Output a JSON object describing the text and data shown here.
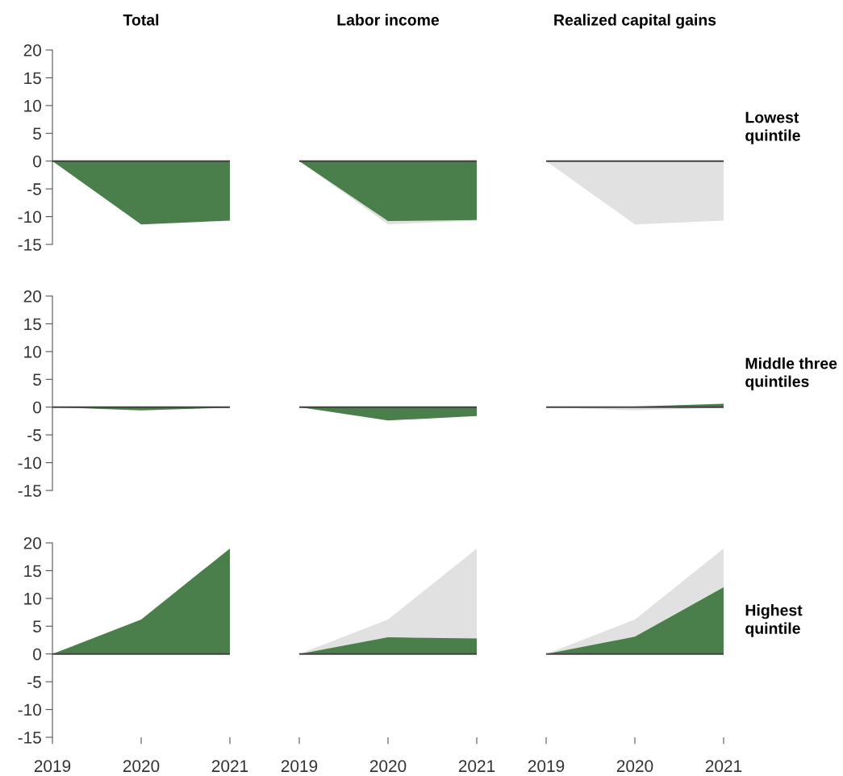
{
  "chart_data": [
    {
      "type": "area",
      "title": "Total",
      "x": [
        2019,
        2020,
        2021
      ],
      "xlim": [
        2019,
        2021
      ],
      "xticks": [
        2019,
        2020,
        2021
      ],
      "ylim": [
        -15,
        20
      ],
      "yticks": [
        -15,
        -10,
        -5,
        0,
        5,
        10,
        15,
        20
      ],
      "tick_labels": "y",
      "grid": false,
      "ref_lines": [
        {
          "axis": "y",
          "value": 0,
          "color": "#404040"
        }
      ],
      "series": [
        {
          "color": "#4a7e4a",
          "values": [
            0,
            -11.4,
            -10.7
          ]
        }
      ]
    },
    {
      "type": "area",
      "title": "Labor income",
      "x": [
        2019,
        2020,
        2021
      ],
      "xlim": [
        2019,
        2021
      ],
      "xticks": [
        2019,
        2020,
        2021
      ],
      "ylim": [
        -15,
        20
      ],
      "yticks": [
        -15,
        -10,
        -5,
        0,
        5,
        10,
        15,
        20
      ],
      "tick_labels": false,
      "grid": false,
      "ref_lines": [
        {
          "axis": "y",
          "value": 0,
          "color": "#404040"
        }
      ],
      "series": [
        {
          "color": "#e1e1e1",
          "values": [
            0,
            -11.4,
            -10.7
          ]
        },
        {
          "color": "#4a7e4a",
          "values": [
            0,
            -10.8,
            -10.6
          ]
        }
      ]
    },
    {
      "type": "area",
      "title": "Realized capital gains",
      "x": [
        2019,
        2020,
        2021
      ],
      "xlim": [
        2019,
        2021
      ],
      "xticks": [
        2019,
        2020,
        2021
      ],
      "ylim": [
        -15,
        20
      ],
      "yticks": [
        -15,
        -10,
        -5,
        0,
        5,
        10,
        15,
        20
      ],
      "tick_labels": false,
      "grid": false,
      "ref_lines": [
        {
          "axis": "y",
          "value": 0,
          "color": "#404040"
        }
      ],
      "annotations": [
        "Lowest\nquintile"
      ],
      "series": [
        {
          "color": "#e1e1e1",
          "values": [
            0,
            -11.4,
            -10.7
          ]
        }
      ]
    },
    {
      "type": "area",
      "x": [
        2019,
        2020,
        2021
      ],
      "xlim": [
        2019,
        2021
      ],
      "xticks": [
        2019,
        2020,
        2021
      ],
      "ylim": [
        -15,
        20
      ],
      "yticks": [
        -15,
        -10,
        -5,
        0,
        5,
        10,
        15,
        20
      ],
      "tick_labels": "y",
      "grid": false,
      "ref_lines": [
        {
          "axis": "y",
          "value": 0,
          "color": "#404040"
        }
      ],
      "series": [
        {
          "color": "#4a7e4a",
          "values": [
            0,
            -0.6,
            -0.1
          ]
        }
      ]
    },
    {
      "type": "area",
      "x": [
        2019,
        2020,
        2021
      ],
      "xlim": [
        2019,
        2021
      ],
      "xticks": [
        2019,
        2020,
        2021
      ],
      "ylim": [
        -15,
        20
      ],
      "yticks": [
        -15,
        -10,
        -5,
        0,
        5,
        10,
        15,
        20
      ],
      "tick_labels": false,
      "grid": false,
      "ref_lines": [
        {
          "axis": "y",
          "value": 0,
          "color": "#404040"
        }
      ],
      "series": [
        {
          "color": "#4a7e4a",
          "values": [
            0,
            -2.4,
            -1.6
          ]
        }
      ]
    },
    {
      "type": "area",
      "x": [
        2019,
        2020,
        2021
      ],
      "xlim": [
        2019,
        2021
      ],
      "xticks": [
        2019,
        2020,
        2021
      ],
      "ylim": [
        -15,
        20
      ],
      "yticks": [
        -15,
        -10,
        -5,
        0,
        5,
        10,
        15,
        20
      ],
      "tick_labels": false,
      "grid": false,
      "ref_lines": [
        {
          "axis": "y",
          "value": 0,
          "color": "#404040"
        }
      ],
      "annotations": [
        "Middle three\nquintiles"
      ],
      "series": [
        {
          "color": "#e1e1e1",
          "values": [
            0,
            -0.6,
            -0.1
          ]
        },
        {
          "color": "#4a7e4a",
          "values": [
            0,
            0.1,
            0.6
          ]
        }
      ]
    },
    {
      "type": "area",
      "x": [
        2019,
        2020,
        2021
      ],
      "xlim": [
        2019,
        2021
      ],
      "xticks": [
        2019,
        2020,
        2021
      ],
      "ylim": [
        -15,
        20
      ],
      "yticks": [
        -15,
        -10,
        -5,
        0,
        5,
        10,
        15,
        20
      ],
      "grid": false,
      "ref_lines": [
        {
          "axis": "y",
          "value": 0,
          "color": "#404040"
        }
      ],
      "series": [
        {
          "color": "#4a7e4a",
          "values": [
            0,
            6.2,
            19.0
          ]
        }
      ]
    },
    {
      "type": "area",
      "x": [
        2019,
        2020,
        2021
      ],
      "xlim": [
        2019,
        2021
      ],
      "xticks": [
        2019,
        2020,
        2021
      ],
      "ylim": [
        -15,
        20
      ],
      "yticks": [
        -15,
        -10,
        -5,
        0,
        5,
        10,
        15,
        20
      ],
      "tick_labels": "x",
      "grid": false,
      "ref_lines": [
        {
          "axis": "y",
          "value": 0,
          "color": "#404040"
        }
      ],
      "series": [
        {
          "color": "#e1e1e1",
          "values": [
            0,
            6.2,
            19.0
          ]
        },
        {
          "color": "#4a7e4a",
          "values": [
            0,
            3.0,
            2.8
          ]
        }
      ]
    },
    {
      "type": "area",
      "x": [
        2019,
        2020,
        2021
      ],
      "xlim": [
        2019,
        2021
      ],
      "xticks": [
        2019,
        2020,
        2021
      ],
      "ylim": [
        -15,
        20
      ],
      "yticks": [
        -15,
        -10,
        -5,
        0,
        5,
        10,
        15,
        20
      ],
      "tick_labels": "x",
      "grid": false,
      "ref_lines": [
        {
          "axis": "y",
          "value": 0,
          "color": "#404040"
        }
      ],
      "annotations": [
        "Highest\nquintile"
      ],
      "series": [
        {
          "color": "#e1e1e1",
          "values": [
            0,
            6.2,
            19.0
          ]
        },
        {
          "color": "#4a7e4a",
          "values": [
            0,
            3.1,
            12.0
          ]
        }
      ]
    }
  ]
}
